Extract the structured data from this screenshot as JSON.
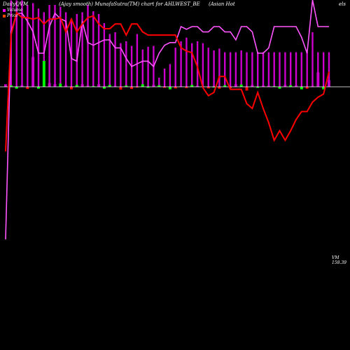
{
  "header": {
    "left": "DailyQVM",
    "mid": "(Ajay smooth) MunafaSutra(TM) chart for AHLWEST_BE",
    "right": "(Asian Hot",
    "tail": "els"
  },
  "legend": {
    "volume": "Volume",
    "price": "Price",
    "volume_color": "#ff00ff",
    "price_color": "#ff4500"
  },
  "last_label": {
    "vm": "VM",
    "value": "158.39"
  },
  "colors": {
    "background": "#000000",
    "volume_bar": "#cc00cc",
    "volume_line": "#ff55ff",
    "price_line": "#ff0000",
    "osc_up": "#00ff00",
    "osc_down": "#ff0000",
    "osc_neutral": "#cc00cc",
    "zero_line": "#ffffff"
  },
  "chart_data": {
    "type": "line",
    "points": 60,
    "price": [
      85,
      158,
      172,
      169,
      169,
      168,
      169,
      165,
      168,
      168,
      169,
      160,
      168,
      160,
      165,
      169,
      170,
      165,
      162,
      162,
      165,
      165,
      158,
      165,
      165,
      160,
      158,
      158,
      158,
      158,
      158,
      158,
      150,
      148,
      147,
      138,
      125,
      120,
      122,
      132,
      132,
      124,
      124,
      124,
      115,
      112,
      122,
      112,
      103,
      92,
      98,
      92,
      98,
      105,
      110,
      110,
      116,
      119,
      121,
      135
    ],
    "volume": [
      10,
      88,
      95,
      95,
      92,
      88,
      80,
      80,
      90,
      95,
      93,
      92,
      78,
      77,
      92,
      84,
      83,
      84,
      85,
      85,
      82,
      82,
      78,
      75,
      76,
      77,
      77,
      75,
      80,
      83,
      84,
      84,
      90,
      89,
      90,
      90,
      88,
      88,
      90,
      90,
      88,
      88,
      85,
      90,
      90,
      88,
      80,
      80,
      82,
      90,
      90,
      90,
      90,
      90,
      86,
      80,
      100,
      90,
      90,
      90
    ],
    "oscillator": [
      8,
      5,
      -6,
      5,
      -7,
      95,
      -6,
      82,
      12,
      8,
      10,
      5,
      -8,
      6,
      8,
      4,
      2,
      8,
      -6,
      6,
      3,
      -9,
      4,
      -7,
      -2,
      8,
      -3,
      6,
      5,
      -3,
      -8,
      -5,
      2,
      -4,
      6,
      3,
      2,
      -5,
      -2,
      -6,
      5,
      -4,
      8,
      7,
      -12,
      6,
      -3,
      4,
      3,
      2,
      -6,
      6,
      5,
      4,
      -8,
      -6,
      3,
      46,
      -8,
      21
    ],
    "volume_bars": [
      -10,
      95,
      95,
      95,
      90,
      92,
      86,
      82,
      90,
      90,
      88,
      82,
      75,
      80,
      82,
      90,
      83,
      80,
      70,
      58,
      60,
      48,
      50,
      45,
      58,
      41,
      44,
      45,
      10,
      20,
      25,
      43,
      50,
      54,
      48,
      50,
      48,
      43,
      40,
      42,
      38,
      38,
      38,
      40,
      38,
      38,
      38,
      38,
      38,
      38,
      38,
      38,
      38,
      38,
      38,
      38,
      60,
      38,
      38,
      38
    ]
  }
}
